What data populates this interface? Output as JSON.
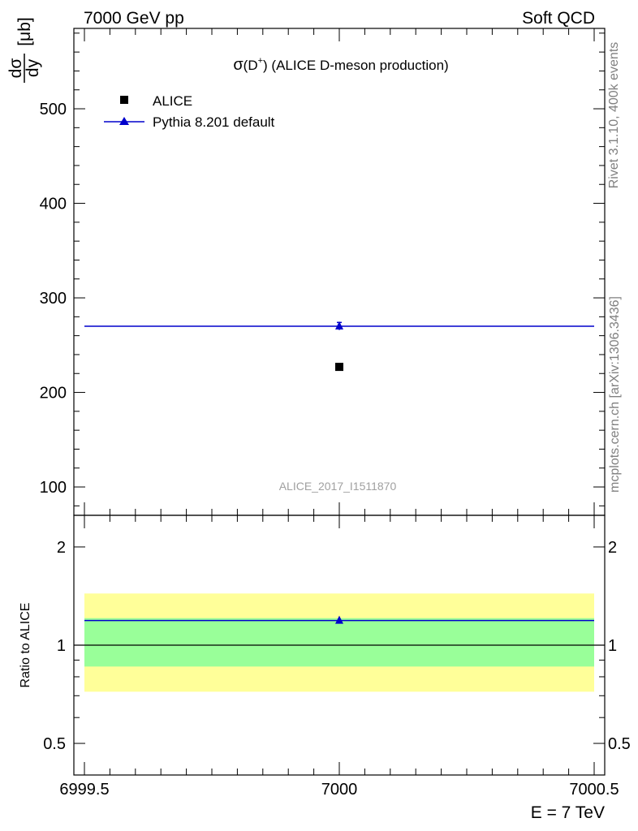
{
  "header": {
    "left": "7000 GeV pp",
    "right": "Soft QCD"
  },
  "side_labels": {
    "rivet": "Rivet 3.1.10,  400k events",
    "url": "mcplots.cern.ch [arXiv:1306.3436]"
  },
  "watermark": "ALICE_2017_I1511870",
  "chart_data": [
    {
      "type": "scatter",
      "panel": "main",
      "title_sigma": "σ",
      "title_rest": "(D",
      "title_sup": "+",
      "title_tail": ") (ALICE D-meson production)",
      "ylabel_num": "dσ",
      "ylabel_den": "dy",
      "ylabel_unit": "[μb]",
      "xlim": [
        6999.5,
        7000.5
      ],
      "ylim": [
        70,
        585
      ],
      "yticks": [
        100,
        200,
        300,
        400,
        500
      ],
      "ytick_labels": [
        "100",
        "200",
        "300",
        "400",
        "500"
      ],
      "legend": [
        {
          "name": "ALICE",
          "marker": "square",
          "color": "#000000"
        },
        {
          "name": "Pythia 8.201 default",
          "marker": "triangle",
          "color": "#0000cc"
        }
      ],
      "series": [
        {
          "name": "ALICE",
          "points": [
            {
              "x": 7000,
              "y": 227
            }
          ],
          "color": "#000000"
        },
        {
          "name": "Pythia 8.201 default",
          "points": [
            {
              "x": 7000,
              "y": 270,
              "err": 4
            }
          ],
          "xrange": [
            6999.5,
            7000.5
          ],
          "color": "#0000cc"
        }
      ]
    },
    {
      "type": "scatter",
      "panel": "ratio",
      "ylabel": "Ratio to ALICE",
      "xlim": [
        6999.5,
        7000.5
      ],
      "ylim": [
        0.4,
        2.5
      ],
      "ytick_labels": [
        "0.5",
        "1",
        "2"
      ],
      "yticks": [
        0.5,
        1,
        2
      ],
      "bands": [
        {
          "name": "yellow",
          "lo": 0.72,
          "hi": 1.44,
          "color": "#ffff99"
        },
        {
          "name": "green",
          "lo": 0.86,
          "hi": 1.21,
          "color": "#99ff99"
        }
      ],
      "reference": 1,
      "series": [
        {
          "name": "Pythia 8.201 default",
          "points": [
            {
              "x": 7000,
              "y": 1.19
            }
          ],
          "color": "#0000cc"
        }
      ],
      "xticks": [
        6999.5,
        7000,
        7000.5
      ],
      "xtick_labels": [
        "6999.5",
        "7000",
        "7000.5"
      ],
      "xlabel": "E = 7 TeV"
    }
  ]
}
